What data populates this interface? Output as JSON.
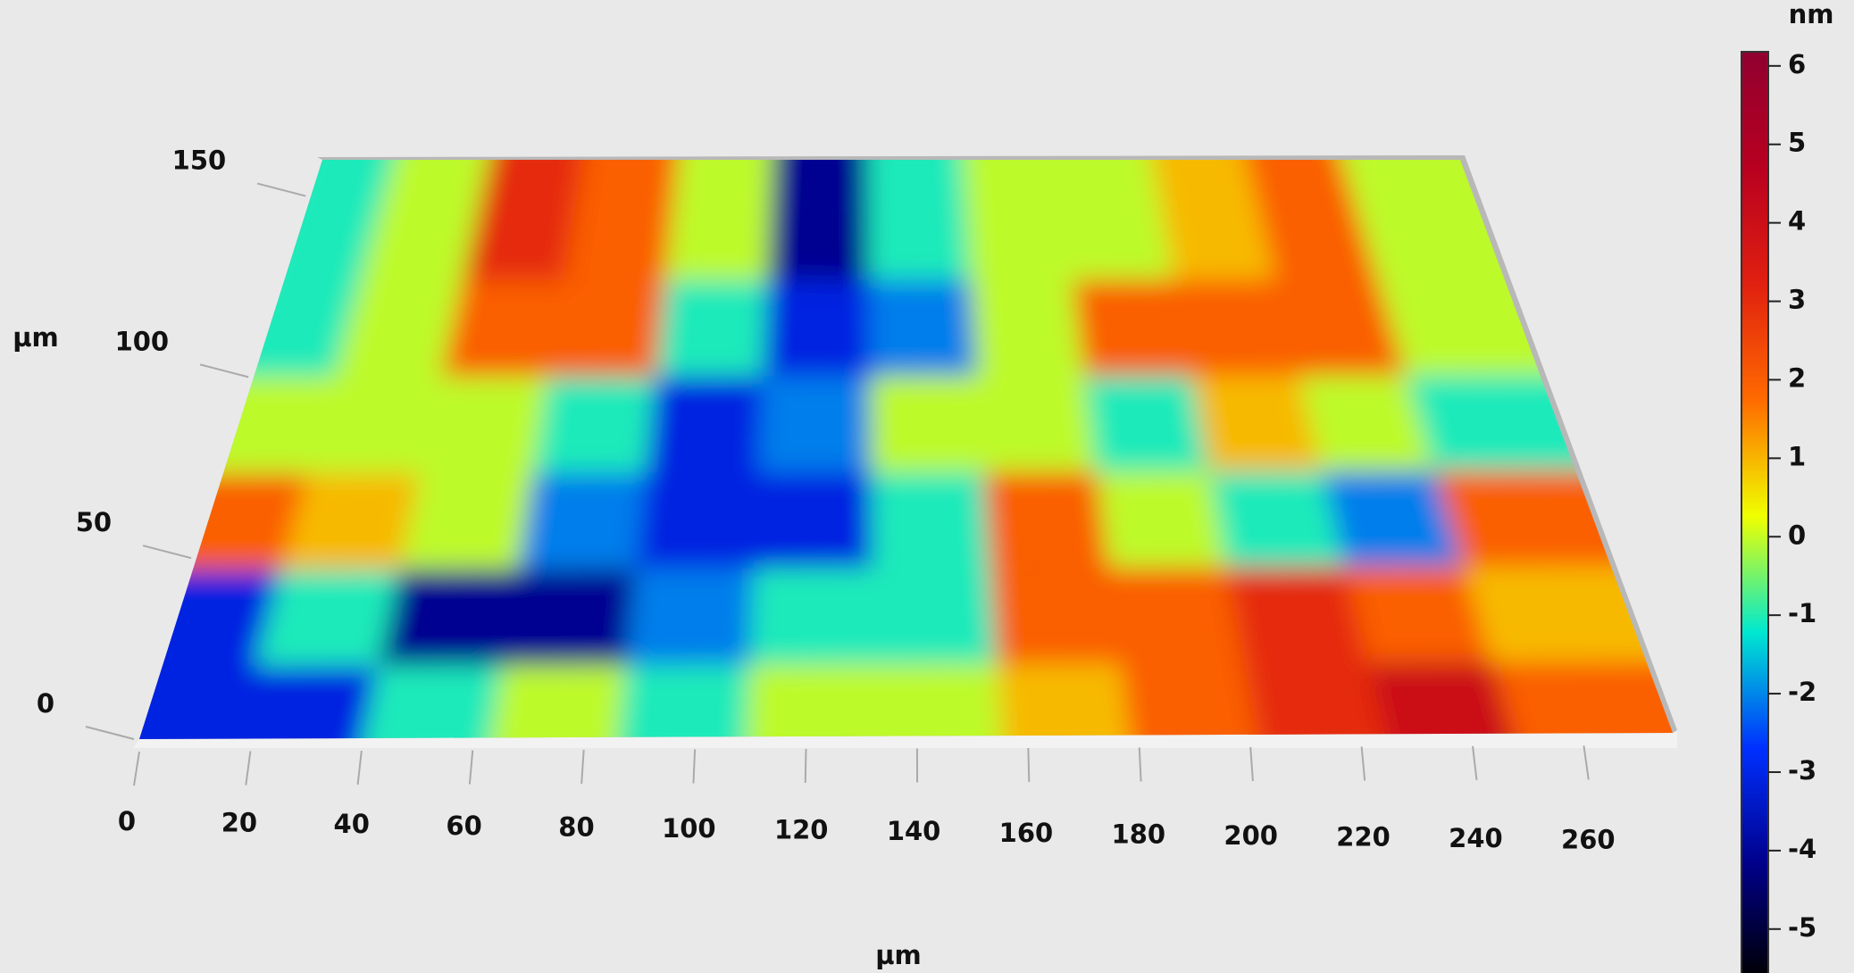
{
  "chart_data": {
    "type": "surface",
    "x_label": "µm",
    "y_label": "µm",
    "z_label": "nm",
    "xlim": [
      0,
      276
    ],
    "ylim": [
      0,
      160
    ],
    "zlim": [
      -5.56,
      6.18
    ],
    "xticks": [
      0,
      20,
      40,
      60,
      80,
      100,
      120,
      140,
      160,
      180,
      200,
      220,
      240,
      260
    ],
    "yticks": [
      0,
      50,
      100,
      150
    ],
    "zticks": [
      -5,
      -4,
      -3,
      -2,
      -1,
      0,
      1,
      2,
      3,
      4,
      5,
      6
    ],
    "colormap": [
      "#000000",
      "#00008a",
      "#0030ff",
      "#00e8d0",
      "#f0ff00",
      "#ff6a00",
      "#e02010",
      "#b80020",
      "#900030"
    ],
    "z": [
      [
        -3,
        -3,
        -1,
        0,
        -1,
        0,
        0,
        1,
        2,
        3,
        4,
        2
      ],
      [
        -3,
        -1,
        -4,
        -4,
        -2,
        -1,
        -1,
        2,
        2,
        3,
        2,
        1
      ],
      [
        2,
        1,
        0,
        -2,
        -3,
        -3,
        -1,
        2,
        0,
        -1,
        -2,
        2
      ],
      [
        0,
        0,
        0,
        -1,
        -3,
        -2,
        0,
        0,
        -1,
        1,
        0,
        -1
      ],
      [
        -1,
        0,
        2,
        2,
        -1,
        -3,
        -2,
        0,
        2,
        2,
        2,
        0
      ],
      [
        -1,
        0,
        3,
        2,
        0,
        -4,
        -1,
        0,
        0,
        1,
        2,
        0
      ]
    ]
  }
}
